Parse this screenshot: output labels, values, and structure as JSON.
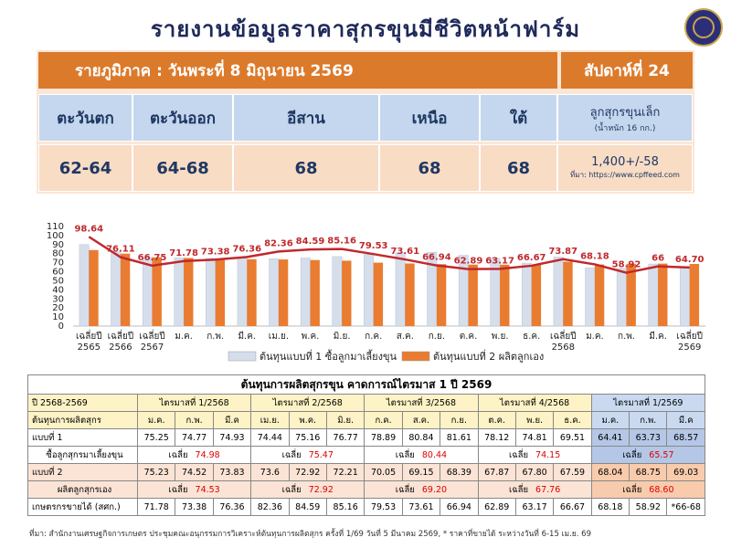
{
  "header": {
    "title": "รายงานข้อมูลราคาสุกรขุนมีชีวิตหน้าฟาร์ม",
    "subtitle": "รายภูมิภาค : วันพระที่ 8 มิถุนายน 2569",
    "week": "สัปดาห์ที่ 24"
  },
  "regions": [
    {
      "name": "ตะวันตก",
      "price": "62-64"
    },
    {
      "name": "ตะวันออก",
      "price": "64-68"
    },
    {
      "name": "อีสาน",
      "price": "68"
    },
    {
      "name": "เหนือ",
      "price": "68"
    },
    {
      "name": "ใต้",
      "price": "68"
    }
  ],
  "piglet": {
    "name": "ลูกสุกรขุนเล็ก",
    "note": "(น้ำหนัก 16 กก.)",
    "price": "1,400+/-58",
    "source": "ที่มา: https://www.cpffeed.com"
  },
  "chart_data": {
    "type": "bar-line",
    "categories": [
      "เฉลี่ยปี 2565",
      "เฉลี่ยปี 2566",
      "เฉลี่ยปี 2567",
      "ม.ค.",
      "ก.พ.",
      "มี.ค.",
      "เม.ย.",
      "พ.ค.",
      "มิ.ย.",
      "ก.ค.",
      "ส.ค.",
      "ก.ย.",
      "ต.ค.",
      "พ.ย.",
      "ธ.ค.",
      "เฉลี่ยปี 2568",
      "ม.ค.",
      "ก.พ.",
      "มี.ค.",
      "เฉลี่ยปี 2569"
    ],
    "series": [
      {
        "name": "ต้นทุนแบบที่ 1 ซื้อลูกมาเลี้ยงขุน",
        "type": "bar",
        "color": "#d6deec",
        "values": [
          90,
          82,
          76,
          75.25,
          74.77,
          74.93,
          74.44,
          75.16,
          76.77,
          78.89,
          80.84,
          81.61,
          78.12,
          74.81,
          69.51,
          76.26,
          64.41,
          63.73,
          68.57,
          65.57
        ]
      },
      {
        "name": "ต้นทุนแบบที่ 2 ผลิตลูกเอง",
        "type": "bar",
        "color": "#e97c30",
        "values": [
          84,
          80,
          76,
          75.23,
          74.52,
          73.83,
          73.6,
          72.92,
          72.21,
          70.05,
          69.15,
          68.39,
          67.87,
          67.8,
          67.59,
          71.1,
          68.04,
          68.75,
          69.03,
          68.6
        ]
      },
      {
        "type": "line",
        "color": "#c0282d",
        "values": [
          98.64,
          76.11,
          66.75,
          71.78,
          73.38,
          76.36,
          82.36,
          84.59,
          85.16,
          79.53,
          73.61,
          66.94,
          62.89,
          63.17,
          66.67,
          73.87,
          68.18,
          58.92,
          66,
          64.7
        ],
        "value_labels": [
          "98.64",
          "76.11",
          "66.75",
          "71.78",
          "73.38",
          "76.36",
          "82.36",
          "84.59",
          "85.16",
          "79.53",
          "73.61",
          "66.94",
          "62.89",
          "63.17",
          "66.67",
          "73.87",
          "68.18",
          "58.92",
          "66",
          "64.70"
        ]
      }
    ],
    "ylim": [
      0,
      110
    ],
    "yticks": [
      0,
      10,
      20,
      30,
      40,
      50,
      60,
      70,
      80,
      90,
      100,
      110
    ],
    "grid": false,
    "legend": "bottom"
  },
  "table": {
    "title": "ต้นทุนการผลิตสุกรขุน คาดการณ์ไตรมาส 1 ปี 2569",
    "corner": "ปี 2568-2569",
    "row_header": "ต้นทุนการผลิตสุกร",
    "quarters": [
      "ไตรมาสที่ 1/2568",
      "ไตรมาสที่ 2/2568",
      "ไตรมาสที่ 3/2568",
      "ไตรมาสที่ 4/2568",
      "ไตรมาสที่ 1/2569"
    ],
    "months": [
      "ม.ค.",
      "ก.พ.",
      "มี.ค",
      "เม.ย.",
      "พ.ค.",
      "มิ.ย.",
      "ก.ค.",
      "ส.ค.",
      "ก.ย.",
      "ต.ค.",
      "พ.ย.",
      "ธ.ค.",
      "ม.ค.",
      "ก.พ.",
      "มี.ค"
    ],
    "rows": [
      {
        "label": "แบบที่ 1",
        "values": [
          "75.25",
          "74.77",
          "74.93",
          "74.44",
          "75.16",
          "76.77",
          "78.89",
          "80.84",
          "81.61",
          "78.12",
          "74.81",
          "69.51",
          "64.41",
          "63.73",
          "68.57"
        ]
      },
      {
        "label": "ซื้อลูกสุกรมาเลี้ยงขุน",
        "word": "เฉลี่ย",
        "averages": [
          "74.98",
          "75.47",
          "80.44",
          "74.15",
          "65.57"
        ]
      },
      {
        "label": "แบบที่ 2",
        "values": [
          "75.23",
          "74.52",
          "73.83",
          "73.6",
          "72.92",
          "72.21",
          "70.05",
          "69.15",
          "68.39",
          "67.87",
          "67.80",
          "67.59",
          "68.04",
          "68.75",
          "69.03"
        ]
      },
      {
        "label": "ผลิตลูกสุกรเอง",
        "word": "เฉลี่ย",
        "averages": [
          "74.53",
          "72.92",
          "69.20",
          "67.76",
          "68.60"
        ]
      },
      {
        "label": "เกษตรกรขายได้ (สศก.)",
        "values": [
          "71.78",
          "73.38",
          "76.36",
          "82.36",
          "84.59",
          "85.16",
          "79.53",
          "73.61",
          "66.94",
          "62.89",
          "63.17",
          "66.67",
          "68.18",
          "58.92",
          "*66-68"
        ]
      }
    ]
  },
  "footer": "ที่มา: สำนักงานเศรษฐกิจการเกษตร ประชุมคณะอนุกรรมการวิเคราะห์ต้นทุนการผลิตสุกร ครั้งที่ 1/69 วันที่ 5 มีนาคม 2569, * ราคาที่ขายได้ ระหว่างวันที่ 6-15 เม.ย. 69"
}
